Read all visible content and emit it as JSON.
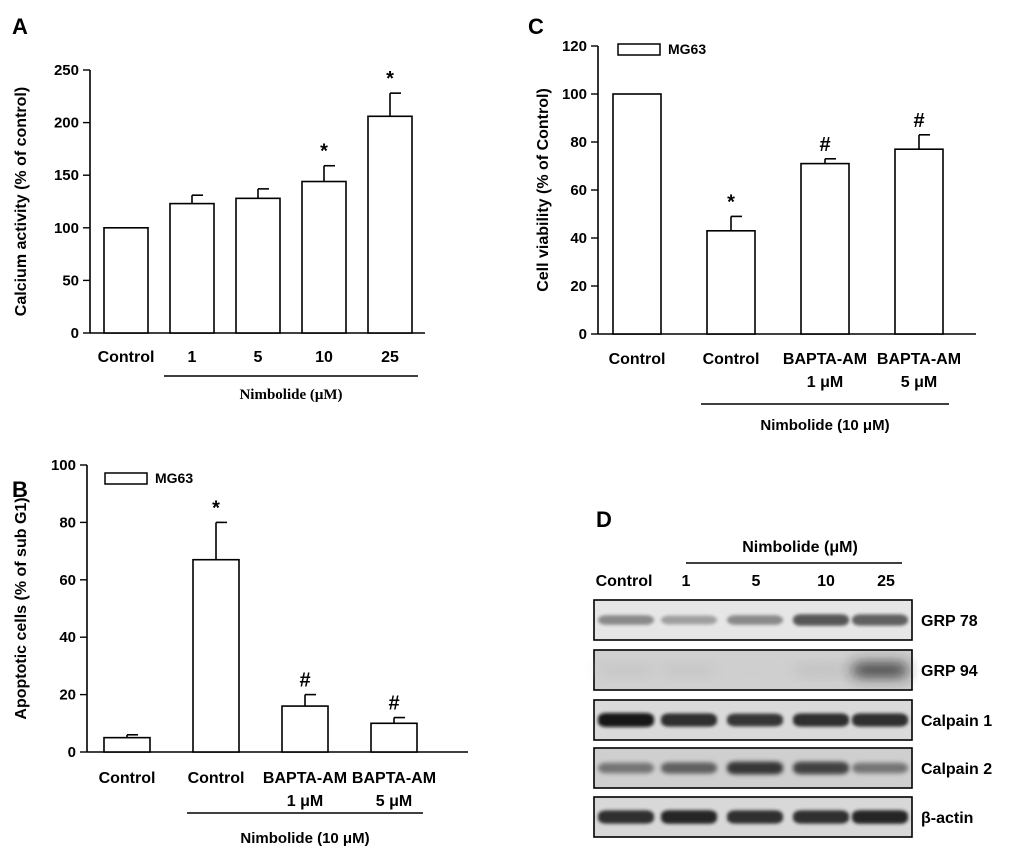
{
  "chart_data": [
    {
      "panel": "A",
      "type": "bar",
      "ylabel": "Calcium activity (% of control)",
      "ylim": [
        0,
        250
      ],
      "yticks": [
        0,
        50,
        100,
        150,
        200,
        250
      ],
      "categories": [
        "Control",
        "1",
        "5",
        "10",
        "25"
      ],
      "values": [
        100,
        123,
        128,
        144,
        206
      ],
      "errors": [
        0,
        8,
        9,
        15,
        22
      ],
      "marks": [
        "",
        "",
        "",
        "*",
        "*"
      ],
      "group_label": "Nimbolide (μM)",
      "group_span": [
        1,
        4
      ]
    },
    {
      "panel": "B",
      "type": "bar",
      "ylabel": "Apoptotic cells (% of sub G1)",
      "ylim": [
        0,
        100
      ],
      "yticks": [
        0,
        20,
        40,
        60,
        80,
        100
      ],
      "legend": "MG63",
      "categories": [
        "Control",
        "Control",
        "BAPTA-AM",
        "BAPTA-AM"
      ],
      "sublabels": [
        "",
        "",
        "1 μM",
        "5 μM"
      ],
      "values": [
        5,
        67,
        16,
        10
      ],
      "errors": [
        1,
        13,
        4,
        2
      ],
      "marks": [
        "",
        "*",
        "#",
        "#"
      ],
      "group_label": "Nimbolide (10 μM)",
      "group_span": [
        1,
        3
      ]
    },
    {
      "panel": "C",
      "type": "bar",
      "ylabel": "Cell viability (% of Control)",
      "ylim": [
        0,
        120
      ],
      "yticks": [
        0,
        20,
        40,
        60,
        80,
        100,
        120
      ],
      "legend": "MG63",
      "categories": [
        "Control",
        "Control",
        "BAPTA-AM",
        "BAPTA-AM"
      ],
      "sublabels": [
        "",
        "",
        "1 μM",
        "5 μM"
      ],
      "values": [
        100,
        43,
        71,
        77
      ],
      "errors": [
        0,
        6,
        2,
        6
      ],
      "marks": [
        "",
        "*",
        "#",
        "#"
      ],
      "group_label": "Nimbolide (10 μM)",
      "group_span": [
        1,
        3
      ]
    }
  ],
  "blot": {
    "panel": "D",
    "header": "Nimbolide (μM)",
    "lanes": [
      "Control",
      "1",
      "5",
      "10",
      "25"
    ],
    "rows": [
      {
        "label": "GRP 78",
        "intensity": [
          0.45,
          0.35,
          0.45,
          0.7,
          0.65
        ],
        "bg": "#e6e6e6",
        "blur": 1.5
      },
      {
        "label": "GRP 94",
        "intensity": [
          0.18,
          0.18,
          0.12,
          0.22,
          0.9
        ],
        "bg": "#d0d0d0",
        "blur": 7
      },
      {
        "label": "Calpain 1",
        "intensity": [
          1.0,
          0.9,
          0.85,
          0.9,
          0.9
        ],
        "bg": "#dadada",
        "blur": 1.5
      },
      {
        "label": "Calpain 2",
        "intensity": [
          0.55,
          0.65,
          0.85,
          0.8,
          0.55
        ],
        "bg": "#cfcfcf",
        "blur": 2
      },
      {
        "label": "β-actin",
        "intensity": [
          0.9,
          0.95,
          0.9,
          0.9,
          0.95
        ],
        "bg": "#d8d8d8",
        "blur": 1.5
      }
    ]
  }
}
